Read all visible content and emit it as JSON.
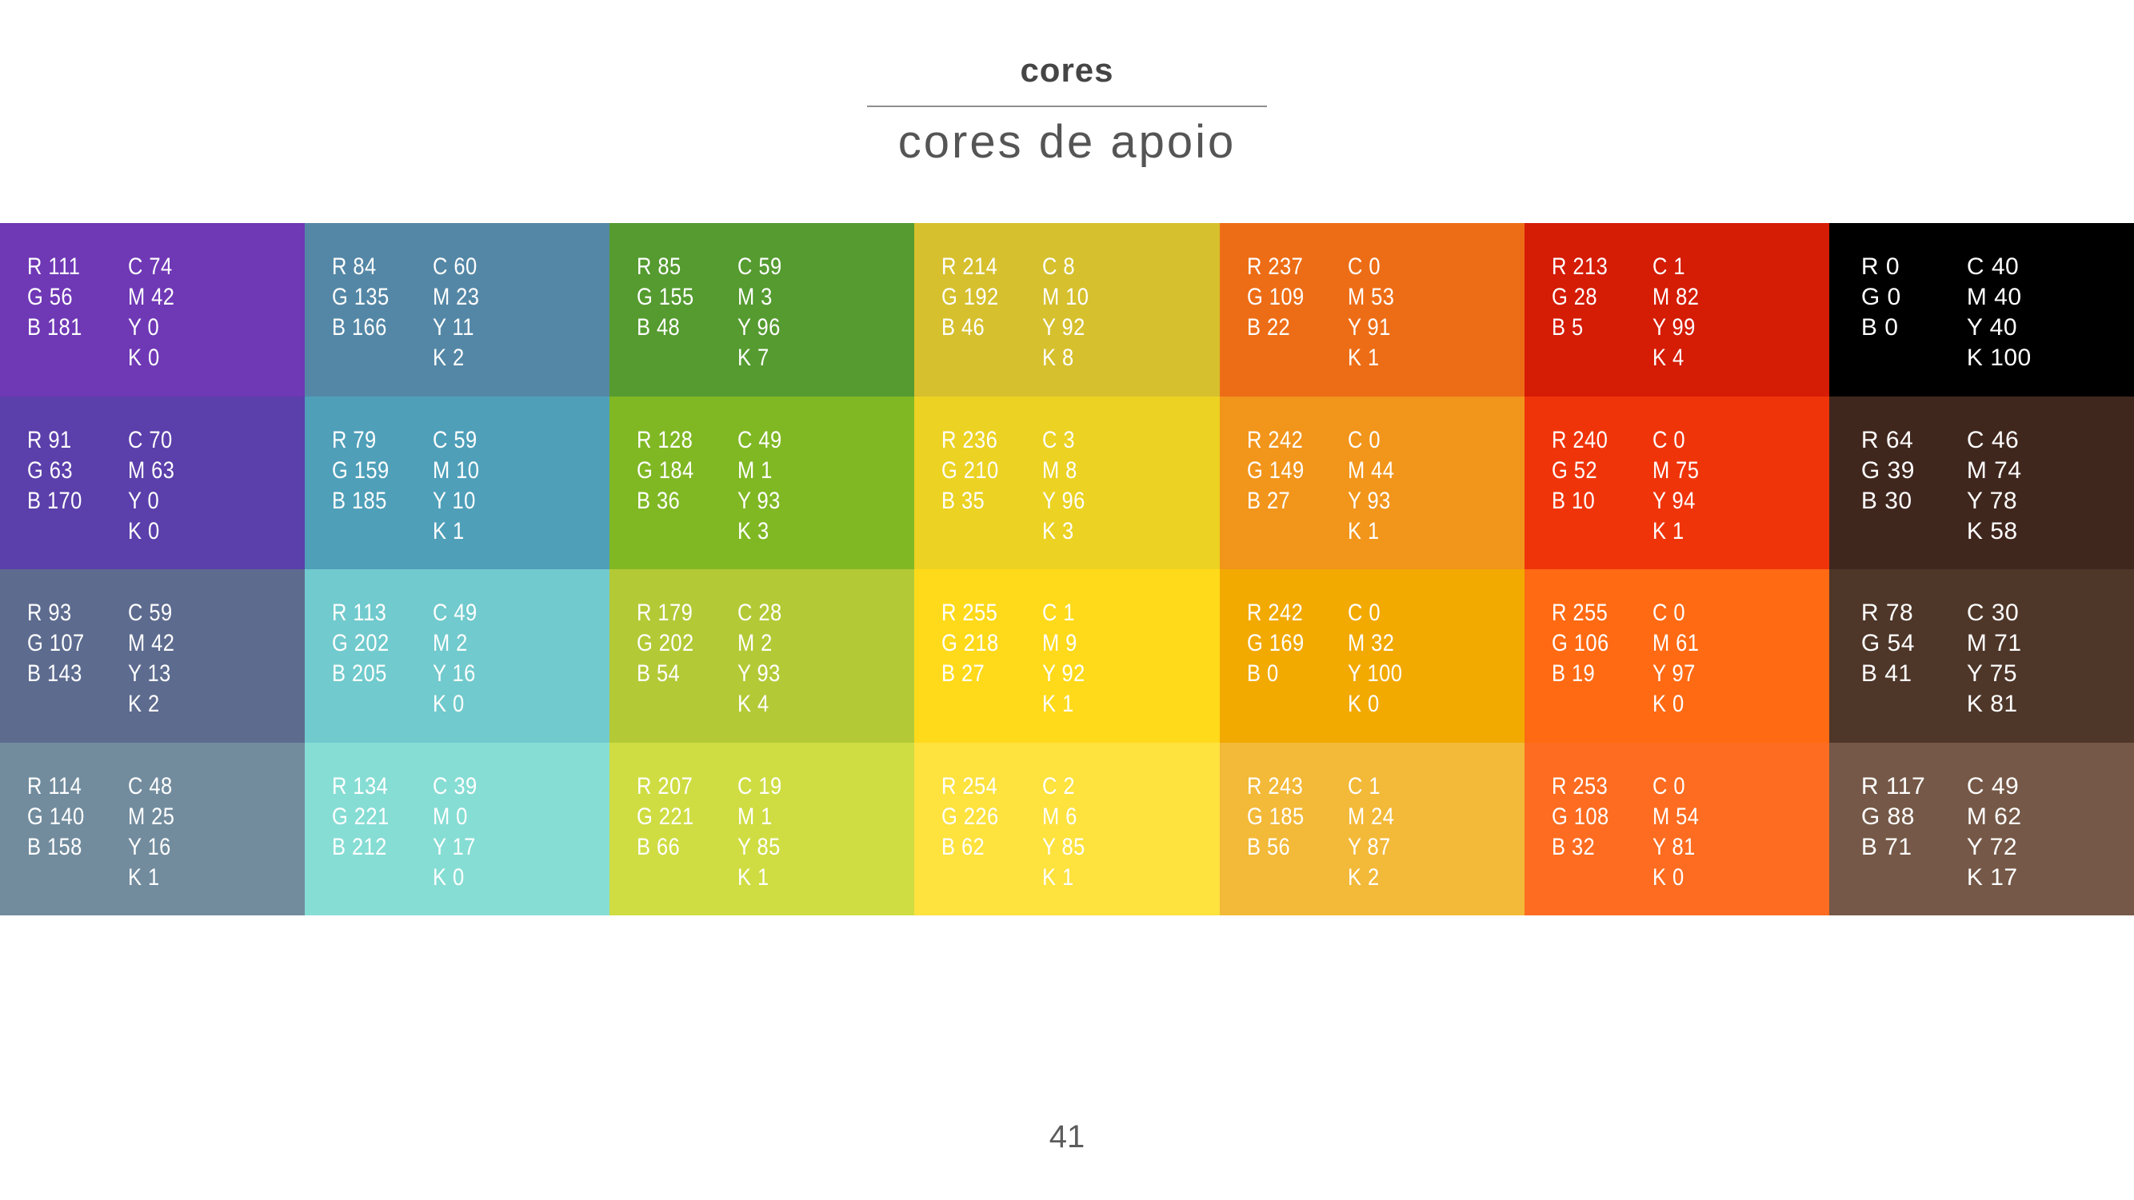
{
  "header": {
    "title": "cores",
    "subtitle": "cores de apoio"
  },
  "footer": {
    "page_number": "41"
  },
  "palette": {
    "columns": 7,
    "rows": [
      {
        "cells": [
          {
            "rgb": [
              111,
              56,
              181
            ],
            "rgb_lines": [
              "R 111",
              "G 56",
              "B 181"
            ],
            "cmyk_lines": [
              "C 74",
              "M 42",
              "Y 0",
              "K 0"
            ]
          },
          {
            "rgb": [
              84,
              135,
              166
            ],
            "rgb_lines": [
              "R 84",
              "G 135",
              "B 166"
            ],
            "cmyk_lines": [
              "C 60",
              "M 23",
              "Y 11",
              "K 2"
            ]
          },
          {
            "rgb": [
              85,
              155,
              48
            ],
            "rgb_lines": [
              "R 85",
              "G 155",
              "B 48"
            ],
            "cmyk_lines": [
              "C 59",
              "M 3",
              "Y 96",
              "K 7"
            ]
          },
          {
            "rgb": [
              214,
              192,
              46
            ],
            "rgb_lines": [
              "R 214",
              "G 192",
              "B 46"
            ],
            "cmyk_lines": [
              "C 8",
              "M 10",
              "Y 92",
              "K 8"
            ]
          },
          {
            "rgb": [
              237,
              109,
              22
            ],
            "rgb_lines": [
              "R 237",
              "G 109",
              "B 22"
            ],
            "cmyk_lines": [
              "C 0",
              "M 53",
              "Y 91",
              "K 1"
            ]
          },
          {
            "rgb": [
              213,
              28,
              5
            ],
            "rgb_lines": [
              "R 213",
              "G 28",
              "B 5"
            ],
            "cmyk_lines": [
              "C 1",
              "M 82",
              "Y 99",
              "K 4"
            ]
          },
          {
            "rgb": [
              0,
              0,
              0
            ],
            "rgb_lines": [
              "R 0",
              "G 0",
              "B 0"
            ],
            "cmyk_lines": [
              "C 40",
              "M 40",
              "Y 40",
              "K 100"
            ]
          }
        ]
      },
      {
        "cells": [
          {
            "rgb": [
              91,
              63,
              170
            ],
            "rgb_lines": [
              "R 91",
              "G 63",
              "B 170"
            ],
            "cmyk_lines": [
              "C 70",
              "M 63",
              "Y 0",
              "K 0"
            ]
          },
          {
            "rgb": [
              79,
              159,
              185
            ],
            "rgb_lines": [
              "R 79",
              "G 159",
              "B 185"
            ],
            "cmyk_lines": [
              "C 59",
              "M 10",
              "Y 10",
              "K 1"
            ]
          },
          {
            "rgb": [
              128,
              184,
              36
            ],
            "rgb_lines": [
              "R 128",
              "G 184",
              "B 36"
            ],
            "cmyk_lines": [
              "C 49",
              "M 1",
              "Y 93",
              "K 3"
            ]
          },
          {
            "rgb": [
              236,
              210,
              35
            ],
            "rgb_lines": [
              "R 236",
              "G 210",
              "B 35"
            ],
            "cmyk_lines": [
              "C 3",
              "M 8",
              "Y 96",
              "K 3"
            ]
          },
          {
            "rgb": [
              242,
              149,
              27
            ],
            "rgb_lines": [
              "R 242",
              "G 149",
              "B 27"
            ],
            "cmyk_lines": [
              "C 0",
              "M 44",
              "Y 93",
              "K 1"
            ]
          },
          {
            "rgb": [
              240,
              52,
              10
            ],
            "rgb_lines": [
              "R 240",
              "G 52",
              "B 10"
            ],
            "cmyk_lines": [
              "C 0",
              "M 75",
              "Y 94",
              "K 1"
            ]
          },
          {
            "rgb": [
              64,
              39,
              30
            ],
            "rgb_lines": [
              "R 64",
              "G 39",
              "B 30"
            ],
            "cmyk_lines": [
              "C 46",
              "M 74",
              "Y 78",
              "K 58"
            ]
          }
        ]
      },
      {
        "cells": [
          {
            "rgb": [
              93,
              107,
              143
            ],
            "rgb_lines": [
              "R 93",
              "G 107",
              "B 143"
            ],
            "cmyk_lines": [
              "C 59",
              "M 42",
              "Y 13",
              "K 2"
            ]
          },
          {
            "rgb": [
              113,
              202,
              205
            ],
            "rgb_lines": [
              "R 113",
              "G 202",
              "B 205"
            ],
            "cmyk_lines": [
              "C 49",
              "M 2",
              "Y 16",
              "K 0"
            ]
          },
          {
            "rgb": [
              179,
              202,
              54
            ],
            "rgb_lines": [
              "R 179",
              "G 202",
              "B 54"
            ],
            "cmyk_lines": [
              "C 28",
              "M 2",
              "Y 93",
              "K 4"
            ]
          },
          {
            "rgb": [
              255,
              218,
              27
            ],
            "rgb_lines": [
              "R 255",
              "G 218",
              "B 27"
            ],
            "cmyk_lines": [
              "C 1",
              "M 9",
              "Y 92",
              "K 1"
            ]
          },
          {
            "rgb": [
              242,
              169,
              0
            ],
            "rgb_lines": [
              "R 242",
              "G 169",
              "B 0"
            ],
            "cmyk_lines": [
              "C 0",
              "M 32",
              "Y 100",
              "K 0"
            ]
          },
          {
            "rgb": [
              255,
              106,
              19
            ],
            "rgb_lines": [
              "R 255",
              "G 106",
              "B 19"
            ],
            "cmyk_lines": [
              "C 0",
              "M 61",
              "Y 97",
              "K 0"
            ]
          },
          {
            "rgb": [
              78,
              54,
              41
            ],
            "rgb_lines": [
              "R 78",
              "G 54",
              "B 41"
            ],
            "cmyk_lines": [
              "C 30",
              "M 71",
              "Y 75",
              "K 81"
            ]
          }
        ]
      },
      {
        "cells": [
          {
            "rgb": [
              114,
              140,
              158
            ],
            "rgb_lines": [
              "R 114",
              "G 140",
              "B 158"
            ],
            "cmyk_lines": [
              "C 48",
              "M 25",
              "Y 16",
              "K 1"
            ]
          },
          {
            "rgb": [
              134,
              221,
              212
            ],
            "rgb_lines": [
              "R 134",
              "G 221",
              "B 212"
            ],
            "cmyk_lines": [
              "C 39",
              "M 0",
              "Y 17",
              "K 0"
            ]
          },
          {
            "rgb": [
              207,
              221,
              66
            ],
            "rgb_lines": [
              "R 207",
              "G 221",
              "B 66"
            ],
            "cmyk_lines": [
              "C 19",
              "M 1",
              "Y 85",
              "K 1"
            ]
          },
          {
            "rgb": [
              254,
              226,
              62
            ],
            "rgb_lines": [
              "R 254",
              "G 226",
              "B 62"
            ],
            "cmyk_lines": [
              "C 2",
              "M 6",
              "Y 85",
              "K 1"
            ]
          },
          {
            "rgb": [
              243,
              185,
              56
            ],
            "rgb_lines": [
              "R 243",
              "G 185",
              "B 56"
            ],
            "cmyk_lines": [
              "C 1",
              "M 24",
              "Y 87",
              "K 2"
            ]
          },
          {
            "rgb": [
              253,
              108,
              32
            ],
            "rgb_lines": [
              "R 253",
              "G 108",
              "B 32"
            ],
            "cmyk_lines": [
              "C 0",
              "M 54",
              "Y 81",
              "K 0"
            ]
          },
          {
            "rgb": [
              117,
              88,
              71
            ],
            "rgb_lines": [
              "R 117",
              "G 88",
              "B 71"
            ],
            "cmyk_lines": [
              "C 49",
              "M 62",
              "Y 72",
              "K 17"
            ]
          }
        ]
      }
    ]
  }
}
